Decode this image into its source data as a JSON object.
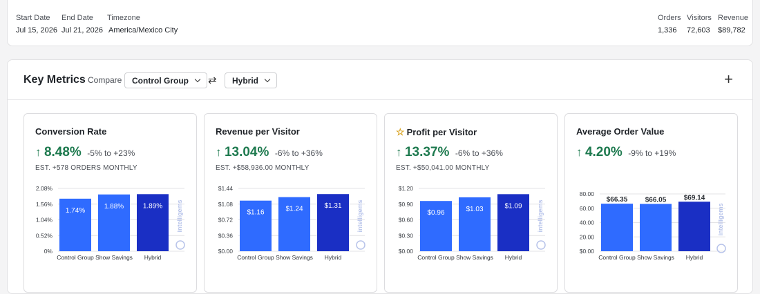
{
  "info": {
    "start_date_label": "Start Date",
    "start_date": "Jul 15, 2026",
    "end_date_label": "End Date",
    "end_date": "Jul 21, 2026",
    "timezone_label": "Timezone",
    "timezone": "America/Mexico City",
    "orders_label": "Orders",
    "orders": "1,336",
    "visitors_label": "Visitors",
    "visitors": "72,603",
    "revenue_label": "Revenue",
    "revenue": "$89,782"
  },
  "key_metrics": {
    "title": "Key Metrics",
    "compare_label": "Compare",
    "compare_a": "Control Group",
    "compare_b": "Hybrid"
  },
  "colors": {
    "control": "#2f6bff",
    "show_savings": "#2f6bff",
    "hybrid": "#1a2fc4",
    "lift": "#1e7a4f",
    "grid": "#e3e3e6"
  },
  "watermark": "intelligems",
  "chart_data": [
    {
      "type": "bar",
      "title": "Conversion Rate",
      "lift": "8.48%",
      "range": "-5% to +23%",
      "est": "EST. +578 ORDERS MONTHLY",
      "starred": false,
      "categories": [
        "Control Group",
        "Show Savings",
        "Hybrid"
      ],
      "values": [
        1.74,
        1.88,
        1.89
      ],
      "data_labels": [
        "1.74%",
        "1.88%",
        "1.89%"
      ],
      "label_inside": true,
      "ylim": [
        0,
        2.08
      ],
      "yticks": [
        0,
        0.52,
        1.04,
        1.56,
        2.08
      ],
      "ytick_labels": [
        "0%",
        "0.52%",
        "1.04%",
        "1.56%",
        "2.08%"
      ]
    },
    {
      "type": "bar",
      "title": "Revenue per Visitor",
      "lift": "13.04%",
      "range": "-6% to +36%",
      "est": "EST. +$58,936.00 MONTHLY",
      "starred": false,
      "categories": [
        "Control Group",
        "Show Savings",
        "Hybrid"
      ],
      "values": [
        1.16,
        1.24,
        1.31
      ],
      "data_labels": [
        "$1.16",
        "$1.24",
        "$1.31"
      ],
      "label_inside": true,
      "ylim": [
        0,
        1.44
      ],
      "yticks": [
        0,
        0.36,
        0.72,
        1.08,
        1.44
      ],
      "ytick_labels": [
        "$0.00",
        "$0.36",
        "$0.72",
        "$1.08",
        "$1.44"
      ]
    },
    {
      "type": "bar",
      "title": "Profit per Visitor",
      "lift": "13.37%",
      "range": "-6% to +36%",
      "est": "EST. +$50,041.00 MONTHLY",
      "starred": true,
      "categories": [
        "Control Group",
        "Show Savings",
        "Hybrid"
      ],
      "values": [
        0.96,
        1.03,
        1.09
      ],
      "data_labels": [
        "$0.96",
        "$1.03",
        "$1.09"
      ],
      "label_inside": true,
      "ylim": [
        0,
        1.2
      ],
      "yticks": [
        0,
        0.3,
        0.6,
        0.9,
        1.2
      ],
      "ytick_labels": [
        "$0.00",
        "$0.30",
        "$0.60",
        "$0.90",
        "$1.20"
      ]
    },
    {
      "type": "bar",
      "title": "Average Order Value",
      "lift": "4.20%",
      "range": "-9% to +19%",
      "est": "",
      "starred": false,
      "categories": [
        "Control Group",
        "Show Savings",
        "Hybrid"
      ],
      "values": [
        66.35,
        66.05,
        69.14
      ],
      "data_labels": [
        "$66.35",
        "$66.05",
        "$69.14"
      ],
      "label_inside": false,
      "ylim": [
        0,
        80
      ],
      "yticks": [
        0,
        20,
        40,
        60,
        80
      ],
      "ytick_labels": [
        "$0.00",
        "20.00",
        "40.00",
        "60.00",
        "80.00"
      ]
    }
  ]
}
